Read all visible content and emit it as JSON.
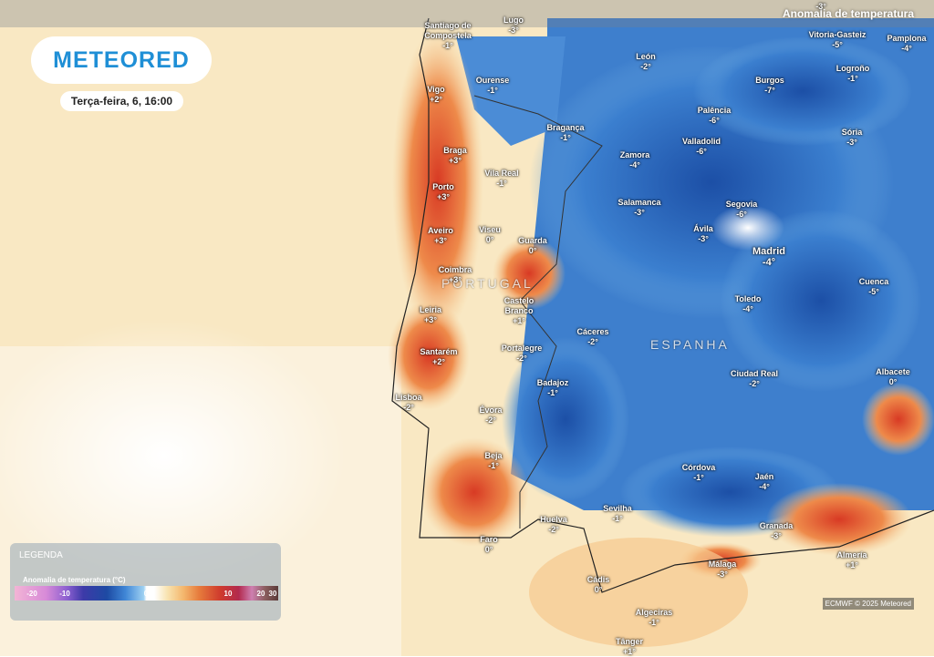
{
  "header": {
    "logo": "METEORED",
    "date": "Terça-feira, 6, 16:00",
    "layer": "Anomalia de temperatura"
  },
  "countries": [
    "PORTUGAL",
    "ESPANHA"
  ],
  "cities": [
    {
      "name": "Santiago de Compostela",
      "value": "-1°"
    },
    {
      "name": "Lugo",
      "value": "-3°"
    },
    {
      "value": "-3°"
    },
    {
      "name": "Vitoria-Gasteiz",
      "value": "-5°"
    },
    {
      "name": "Pamplona",
      "value": "-4°"
    },
    {
      "name": "León",
      "value": "-2°"
    },
    {
      "name": "Ourense",
      "value": "-1°"
    },
    {
      "name": "Burgos",
      "value": "-7°"
    },
    {
      "name": "Logroño",
      "value": "-1°"
    },
    {
      "name": "Vigo",
      "value": "+2°"
    },
    {
      "name": "Bragança",
      "value": "-1°"
    },
    {
      "name": "Palência",
      "value": "-6°"
    },
    {
      "name": "Sória",
      "value": "-3°"
    },
    {
      "name": "Braga",
      "value": "+3°"
    },
    {
      "name": "Zamora",
      "value": "-4°"
    },
    {
      "name": "Valladolid",
      "value": "-6°"
    },
    {
      "name": "Vila Real",
      "value": "-1°"
    },
    {
      "name": "Porto",
      "value": "+3°"
    },
    {
      "name": "Salamanca",
      "value": "-3°"
    },
    {
      "name": "Segovia",
      "value": "-6°"
    },
    {
      "name": "Aveiro",
      "value": "+3°"
    },
    {
      "name": "Viseu",
      "value": "0°"
    },
    {
      "name": "Guarda",
      "value": "0°"
    },
    {
      "name": "Ávila",
      "value": "-3°"
    },
    {
      "name": "Madrid",
      "value": "-4°"
    },
    {
      "name": "Coimbra",
      "value": "+3°"
    },
    {
      "name": "Cuenca",
      "value": "-5°"
    },
    {
      "name": "Castelo Branco",
      "value": "+1°"
    },
    {
      "name": "Toledo",
      "value": "-4°"
    },
    {
      "name": "Leiria",
      "value": "+3°"
    },
    {
      "name": "Cáceres",
      "value": "-2°"
    },
    {
      "name": "Portalegre",
      "value": "-2°"
    },
    {
      "name": "Santarém",
      "value": "+2°"
    },
    {
      "name": "Ciudad Real",
      "value": "-2°"
    },
    {
      "name": "Albacete",
      "value": "0°"
    },
    {
      "name": "Badajoz",
      "value": "-1°"
    },
    {
      "name": "Lisboa",
      "value": "-2°"
    },
    {
      "name": "Évora",
      "value": "-2°"
    },
    {
      "name": "Beja",
      "value": "-1°"
    },
    {
      "name": "Córdova",
      "value": "-1°"
    },
    {
      "name": "Jaén",
      "value": "-4°"
    },
    {
      "name": "Sevilha",
      "value": "-1°"
    },
    {
      "name": "Huelva",
      "value": "-2°"
    },
    {
      "name": "Granada",
      "value": "-3°"
    },
    {
      "name": "Faro",
      "value": "0°"
    },
    {
      "name": "Málaga",
      "value": "-3°"
    },
    {
      "name": "Almería",
      "value": "+1°"
    },
    {
      "name": "Cádis",
      "value": "0°"
    },
    {
      "name": "Algeciras",
      "value": "-1°"
    },
    {
      "name": "Tânger",
      "value": "+1°"
    }
  ],
  "legend": {
    "title": "LEGENDA",
    "subtitle": "Anomalia de temperatura (°C)",
    "scale": [
      "-20",
      "-10",
      "0",
      "10",
      "20",
      "30"
    ]
  },
  "credit": "ECMWF © 2025 Meteored"
}
